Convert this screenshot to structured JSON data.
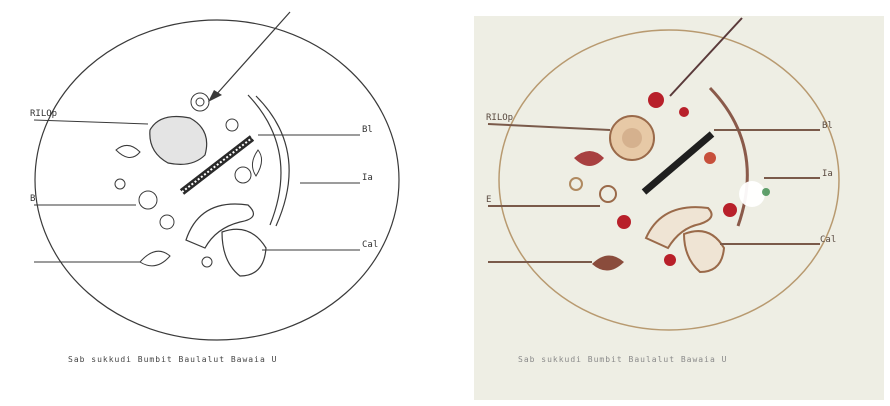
{
  "left": {
    "labels": {
      "top_left": "RILOp",
      "mid_left": "B",
      "top_right": "Bl",
      "mid_right": "Ia",
      "bottom_right": "Cal"
    },
    "caption": "Sab sukkudi Bumbit Baulalut Bawaia U"
  },
  "right": {
    "labels": {
      "top_left": "RILOp",
      "mid_left": "E",
      "top_right": "Bl",
      "mid_right": "Ia",
      "bottom_right": "Cal"
    },
    "caption": "Sab sukkudi Bumbit Baulalut Bawaia U"
  },
  "colors": {
    "sketch_stroke": "#3a3a3a",
    "right_bg": "#eeeee4",
    "accent_red": "#b8202a",
    "accent_brown": "#9a6a4a"
  }
}
